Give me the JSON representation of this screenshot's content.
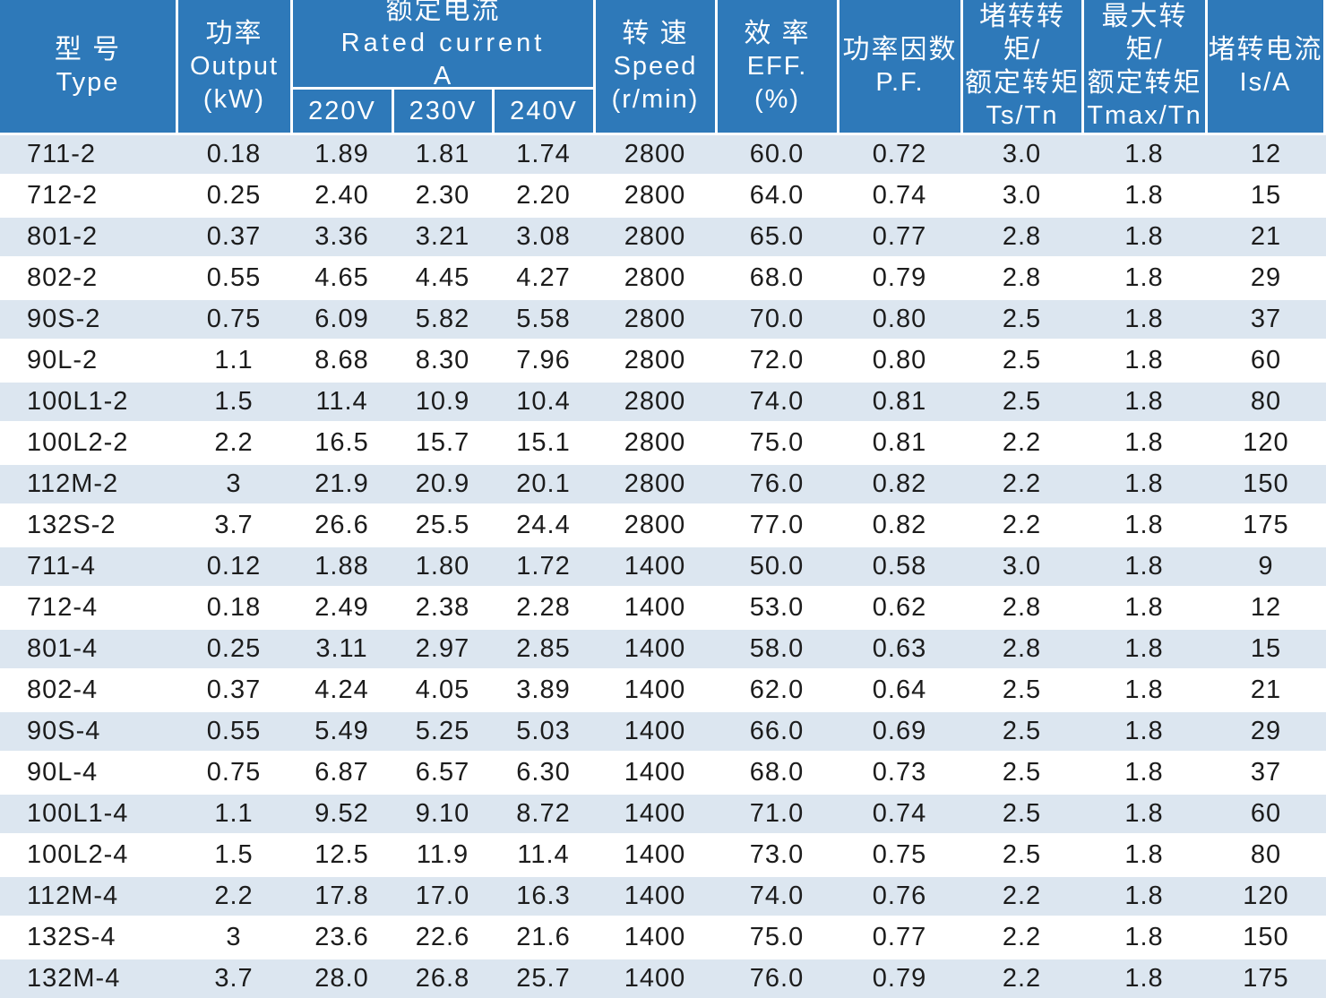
{
  "table": {
    "header": {
      "type": {
        "zh": "型 号",
        "en": "Type"
      },
      "output": {
        "zh": "功率",
        "en": "Output",
        "unit": "(kW)"
      },
      "rated_current": {
        "zh": "额定电流",
        "en": "Rated current",
        "unit": "A",
        "subcols": {
          "v220": "220V",
          "v230": "230V",
          "v240": "240V"
        }
      },
      "speed": {
        "zh": "转 速",
        "en": "Speed",
        "unit": "(r/min)"
      },
      "eff": {
        "zh": "效 率",
        "en": "EFF.",
        "unit": "(%)"
      },
      "pf": {
        "zh": "功率因数",
        "en": "P.F."
      },
      "ts_tn": {
        "zh1": "堵转转矩/",
        "zh2": "额定转矩",
        "en": "Ts/Tn"
      },
      "tmax_tn": {
        "zh1": "最大转矩/",
        "zh2": "额定转矩",
        "en": "Tmax/Tn"
      },
      "is_a": {
        "zh": "堵转电流",
        "en": "Is/A"
      }
    },
    "rows": [
      [
        "711-2",
        "0.18",
        "1.89",
        "1.81",
        "1.74",
        "2800",
        "60.0",
        "0.72",
        "3.0",
        "1.8",
        "12"
      ],
      [
        "712-2",
        "0.25",
        "2.40",
        "2.30",
        "2.20",
        "2800",
        "64.0",
        "0.74",
        "3.0",
        "1.8",
        "15"
      ],
      [
        "801-2",
        "0.37",
        "3.36",
        "3.21",
        "3.08",
        "2800",
        "65.0",
        "0.77",
        "2.8",
        "1.8",
        "21"
      ],
      [
        "802-2",
        "0.55",
        "4.65",
        "4.45",
        "4.27",
        "2800",
        "68.0",
        "0.79",
        "2.8",
        "1.8",
        "29"
      ],
      [
        "90S-2",
        "0.75",
        "6.09",
        "5.82",
        "5.58",
        "2800",
        "70.0",
        "0.80",
        "2.5",
        "1.8",
        "37"
      ],
      [
        "90L-2",
        "1.1",
        "8.68",
        "8.30",
        "7.96",
        "2800",
        "72.0",
        "0.80",
        "2.5",
        "1.8",
        "60"
      ],
      [
        "100L1-2",
        "1.5",
        "11.4",
        "10.9",
        "10.4",
        "2800",
        "74.0",
        "0.81",
        "2.5",
        "1.8",
        "80"
      ],
      [
        "100L2-2",
        "2.2",
        "16.5",
        "15.7",
        "15.1",
        "2800",
        "75.0",
        "0.81",
        "2.2",
        "1.8",
        "120"
      ],
      [
        "112M-2",
        "3",
        "21.9",
        "20.9",
        "20.1",
        "2800",
        "76.0",
        "0.82",
        "2.2",
        "1.8",
        "150"
      ],
      [
        "132S-2",
        "3.7",
        "26.6",
        "25.5",
        "24.4",
        "2800",
        "77.0",
        "0.82",
        "2.2",
        "1.8",
        "175"
      ],
      [
        "711-4",
        "0.12",
        "1.88",
        "1.80",
        "1.72",
        "1400",
        "50.0",
        "0.58",
        "3.0",
        "1.8",
        "9"
      ],
      [
        "712-4",
        "0.18",
        "2.49",
        "2.38",
        "2.28",
        "1400",
        "53.0",
        "0.62",
        "2.8",
        "1.8",
        "12"
      ],
      [
        "801-4",
        "0.25",
        "3.11",
        "2.97",
        "2.85",
        "1400",
        "58.0",
        "0.63",
        "2.8",
        "1.8",
        "15"
      ],
      [
        "802-4",
        "0.37",
        "4.24",
        "4.05",
        "3.89",
        "1400",
        "62.0",
        "0.64",
        "2.5",
        "1.8",
        "21"
      ],
      [
        "90S-4",
        "0.55",
        "5.49",
        "5.25",
        "5.03",
        "1400",
        "66.0",
        "0.69",
        "2.5",
        "1.8",
        "29"
      ],
      [
        "90L-4",
        "0.75",
        "6.87",
        "6.57",
        "6.30",
        "1400",
        "68.0",
        "0.73",
        "2.5",
        "1.8",
        "37"
      ],
      [
        "100L1-4",
        "1.1",
        "9.52",
        "9.10",
        "8.72",
        "1400",
        "71.0",
        "0.74",
        "2.5",
        "1.8",
        "60"
      ],
      [
        "100L2-4",
        "1.5",
        "12.5",
        "11.9",
        "11.4",
        "1400",
        "73.0",
        "0.75",
        "2.5",
        "1.8",
        "80"
      ],
      [
        "112M-4",
        "2.2",
        "17.8",
        "17.0",
        "16.3",
        "1400",
        "74.0",
        "0.76",
        "2.2",
        "1.8",
        "120"
      ],
      [
        "132S-4",
        "3",
        "23.6",
        "22.6",
        "21.6",
        "1400",
        "75.0",
        "0.77",
        "2.2",
        "1.8",
        "150"
      ],
      [
        "132M-4",
        "3.7",
        "28.0",
        "26.8",
        "25.7",
        "1400",
        "76.0",
        "0.79",
        "2.2",
        "1.8",
        "175"
      ]
    ],
    "colors": {
      "header_bg": "#2e79b9",
      "row_alt_bg": "#dce6f0",
      "row_bg": "#ffffff",
      "header_text": "#ffffff",
      "data_text": "#1c1c1c"
    }
  }
}
